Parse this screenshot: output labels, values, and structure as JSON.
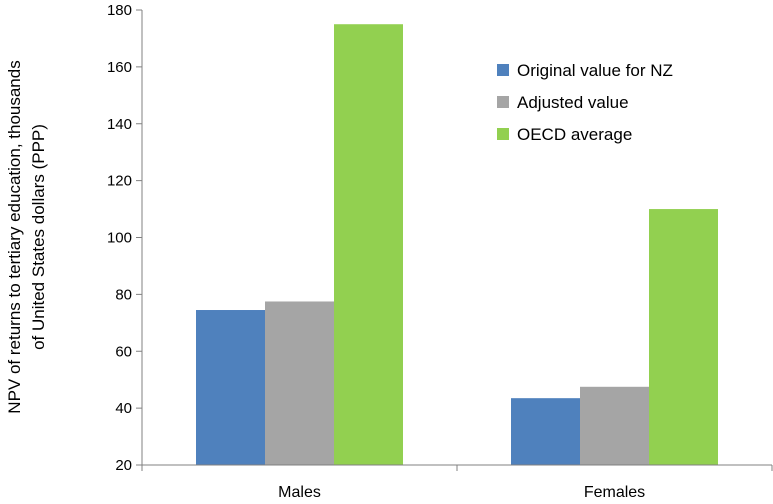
{
  "chart_data": {
    "type": "bar",
    "title": "",
    "xlabel": "",
    "ylabel_lines": [
      "NPV of returns to tertiary education, thousands",
      "of United States dollars (PPP)"
    ],
    "categories": [
      "Males",
      "Females"
    ],
    "ylim": [
      20,
      180
    ],
    "yticks": [
      20,
      40,
      60,
      80,
      100,
      120,
      140,
      160,
      180
    ],
    "grid": false,
    "legend_position": "top-right",
    "series": [
      {
        "name": "Original value for NZ",
        "color": "#4f81bd",
        "values": [
          74.5,
          43.5
        ]
      },
      {
        "name": "Adjusted value",
        "color": "#a5a5a5",
        "values": [
          77.5,
          47.5
        ]
      },
      {
        "name": "OECD average",
        "color": "#92d050",
        "values": [
          175,
          110
        ]
      }
    ]
  }
}
